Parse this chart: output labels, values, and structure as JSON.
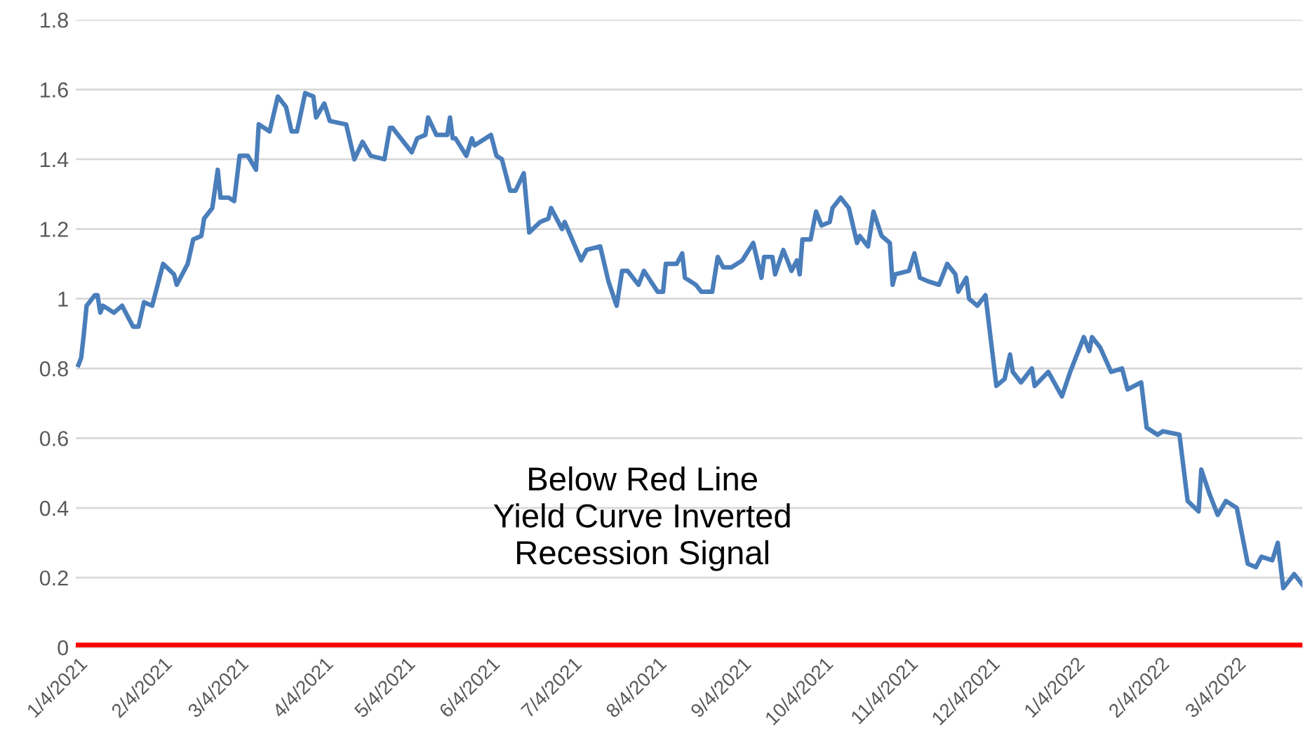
{
  "chart_data": {
    "type": "line",
    "annotations": [
      "Below Red Line\nYield Curve Inverted\nRecession Signal"
    ],
    "xlim": [
      "2021-01-03",
      "2022-03-28"
    ],
    "ylim": [
      0,
      1.8
    ],
    "yticks": [
      0,
      0.2,
      0.4,
      0.6,
      0.8,
      1,
      1.2,
      1.4,
      1.6,
      1.8
    ],
    "xticks": [
      {
        "value": "2021-01-04",
        "label": "1/4/2021"
      },
      {
        "value": "2021-02-04",
        "label": "2/4/2021"
      },
      {
        "value": "2021-03-04",
        "label": "3/4/2021"
      },
      {
        "value": "2021-04-04",
        "label": "4/4/2021"
      },
      {
        "value": "2021-05-04",
        "label": "5/4/2021"
      },
      {
        "value": "2021-06-04",
        "label": "6/4/2021"
      },
      {
        "value": "2021-07-04",
        "label": "7/4/2021"
      },
      {
        "value": "2021-08-04",
        "label": "8/4/2021"
      },
      {
        "value": "2021-09-04",
        "label": "9/4/2021"
      },
      {
        "value": "2021-10-04",
        "label": "10/4/2021"
      },
      {
        "value": "2021-11-04",
        "label": "11/4/2021"
      },
      {
        "value": "2021-12-04",
        "label": "12/4/2021"
      },
      {
        "value": "2022-01-04",
        "label": "1/4/2022"
      },
      {
        "value": "2022-02-04",
        "label": "2/4/2022"
      },
      {
        "value": "2022-03-04",
        "label": "3/4/2022"
      }
    ],
    "grid": "y",
    "legend": false,
    "marker": "none",
    "line_style": "solid",
    "ref_lines": [
      {
        "axis": "y",
        "value": 0,
        "color": "#ff0000",
        "line_style": "solid"
      }
    ],
    "series": [
      {
        "color": "#4a7ebb",
        "x": [
          "2021-01-04",
          "2021-01-05",
          "2021-01-06",
          "2021-01-07",
          "2021-01-10",
          "2021-01-11",
          "2021-01-12",
          "2021-01-13",
          "2021-01-17",
          "2021-01-20",
          "2021-01-24",
          "2021-01-26",
          "2021-01-28",
          "2021-01-31",
          "2021-02-02",
          "2021-02-04",
          "2021-02-08",
          "2021-02-09",
          "2021-02-13",
          "2021-02-15",
          "2021-02-18",
          "2021-02-19",
          "2021-02-22",
          "2021-02-24",
          "2021-02-25",
          "2021-02-28",
          "2021-03-02",
          "2021-03-04",
          "2021-03-07",
          "2021-03-10",
          "2021-03-11",
          "2021-03-15",
          "2021-03-18",
          "2021-03-21",
          "2021-03-23",
          "2021-03-25",
          "2021-03-28",
          "2021-03-31",
          "2021-04-01",
          "2021-04-04",
          "2021-04-06",
          "2021-04-12",
          "2021-04-15",
          "2021-04-18",
          "2021-04-21",
          "2021-04-26",
          "2021-04-28",
          "2021-04-29",
          "2021-05-06",
          "2021-05-08",
          "2021-05-11",
          "2021-05-12",
          "2021-05-15",
          "2021-05-19",
          "2021-05-20",
          "2021-05-21",
          "2021-05-22",
          "2021-05-26",
          "2021-05-28",
          "2021-05-29",
          "2021-06-04",
          "2021-06-06",
          "2021-06-08",
          "2021-06-11",
          "2021-06-13",
          "2021-06-16",
          "2021-06-18",
          "2021-06-22",
          "2021-06-25",
          "2021-06-26",
          "2021-06-30",
          "2021-07-01",
          "2021-07-07",
          "2021-07-09",
          "2021-07-14",
          "2021-07-17",
          "2021-07-20",
          "2021-07-22",
          "2021-07-24",
          "2021-07-28",
          "2021-07-30",
          "2021-08-04",
          "2021-08-06",
          "2021-08-07",
          "2021-08-11",
          "2021-08-13",
          "2021-08-14",
          "2021-08-18",
          "2021-08-20",
          "2021-08-24",
          "2021-08-26",
          "2021-08-28",
          "2021-08-31",
          "2021-09-04",
          "2021-09-08",
          "2021-09-11",
          "2021-09-12",
          "2021-09-15",
          "2021-09-16",
          "2021-09-19",
          "2021-09-22",
          "2021-09-24",
          "2021-09-25",
          "2021-09-26",
          "2021-09-29",
          "2021-10-01",
          "2021-10-03",
          "2021-10-06",
          "2021-10-07",
          "2021-10-10",
          "2021-10-13",
          "2021-10-16",
          "2021-10-17",
          "2021-10-20",
          "2021-10-22",
          "2021-10-25",
          "2021-10-28",
          "2021-10-29",
          "2021-10-30",
          "2021-11-04",
          "2021-11-06",
          "2021-11-08",
          "2021-11-11",
          "2021-11-15",
          "2021-11-18",
          "2021-11-21",
          "2021-11-22",
          "2021-11-25",
          "2021-11-26",
          "2021-11-29",
          "2021-12-02",
          "2021-12-06",
          "2021-12-09",
          "2021-12-11",
          "2021-12-12",
          "2021-12-15",
          "2021-12-19",
          "2021-12-20",
          "2021-12-25",
          "2021-12-30",
          "2022-01-02",
          "2022-01-07",
          "2022-01-09",
          "2022-01-10",
          "2022-01-13",
          "2022-01-17",
          "2022-01-21",
          "2022-01-23",
          "2022-01-28",
          "2022-01-30",
          "2022-02-03",
          "2022-02-05",
          "2022-02-11",
          "2022-02-14",
          "2022-02-18",
          "2022-02-19",
          "2022-02-22",
          "2022-02-25",
          "2022-02-28",
          "2022-03-04",
          "2022-03-08",
          "2022-03-11",
          "2022-03-13",
          "2022-03-17",
          "2022-03-19",
          "2022-03-21",
          "2022-03-25",
          "2022-03-28"
        ],
        "values": [
          0.81,
          0.83,
          0.9,
          0.98,
          1.01,
          1.01,
          0.96,
          0.98,
          0.96,
          0.98,
          0.92,
          0.92,
          0.99,
          0.98,
          1.04,
          1.1,
          1.07,
          1.04,
          1.1,
          1.17,
          1.18,
          1.23,
          1.26,
          1.37,
          1.29,
          1.29,
          1.28,
          1.41,
          1.41,
          1.37,
          1.5,
          1.48,
          1.58,
          1.55,
          1.48,
          1.48,
          1.59,
          1.58,
          1.52,
          1.56,
          1.51,
          1.5,
          1.4,
          1.45,
          1.41,
          1.4,
          1.49,
          1.49,
          1.42,
          1.46,
          1.47,
          1.52,
          1.47,
          1.47,
          1.52,
          1.46,
          1.46,
          1.41,
          1.46,
          1.44,
          1.47,
          1.41,
          1.4,
          1.31,
          1.31,
          1.36,
          1.19,
          1.22,
          1.23,
          1.26,
          1.2,
          1.22,
          1.11,
          1.14,
          1.15,
          1.05,
          0.98,
          1.08,
          1.08,
          1.04,
          1.08,
          1.02,
          1.02,
          1.1,
          1.1,
          1.13,
          1.06,
          1.04,
          1.02,
          1.02,
          1.12,
          1.09,
          1.09,
          1.11,
          1.16,
          1.06,
          1.12,
          1.12,
          1.07,
          1.14,
          1.08,
          1.11,
          1.07,
          1.17,
          1.17,
          1.25,
          1.21,
          1.22,
          1.26,
          1.29,
          1.26,
          1.16,
          1.18,
          1.15,
          1.25,
          1.18,
          1.16,
          1.04,
          1.07,
          1.08,
          1.13,
          1.06,
          1.05,
          1.04,
          1.1,
          1.07,
          1.02,
          1.06,
          1.0,
          0.98,
          1.01,
          0.75,
          0.77,
          0.84,
          0.79,
          0.76,
          0.8,
          0.75,
          0.79,
          0.72,
          0.79,
          0.89,
          0.85,
          0.89,
          0.86,
          0.79,
          0.8,
          0.74,
          0.76,
          0.63,
          0.61,
          0.62,
          0.61,
          0.42,
          0.39,
          0.51,
          0.44,
          0.38,
          0.42,
          0.4,
          0.24,
          0.23,
          0.26,
          0.25,
          0.3,
          0.17,
          0.21,
          0.18
        ]
      }
    ]
  }
}
